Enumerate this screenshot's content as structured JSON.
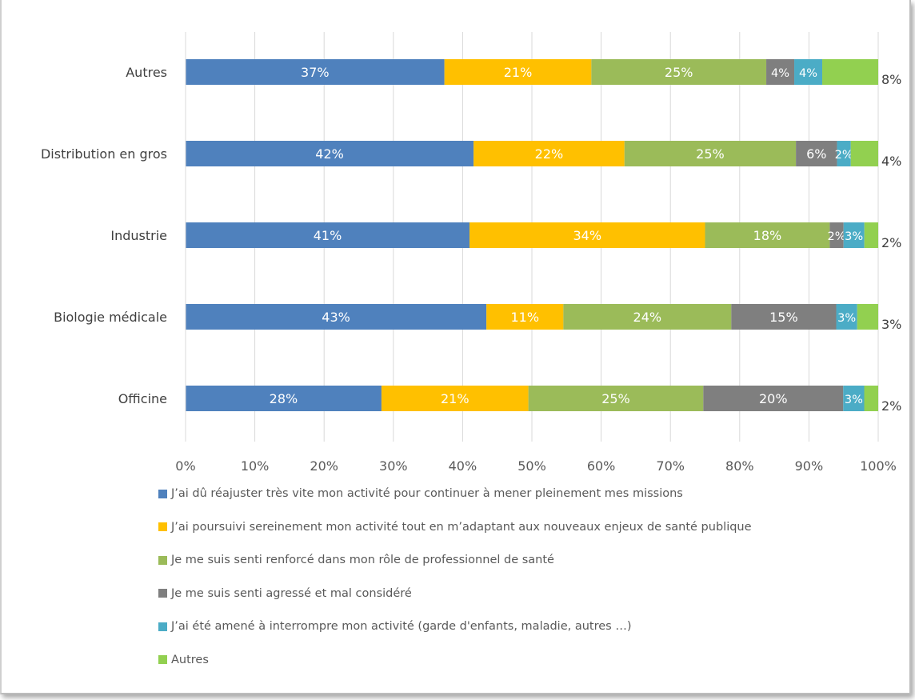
{
  "chart_data": {
    "type": "bar",
    "orientation": "horizontal",
    "stacked": true,
    "percent_stacked": true,
    "categories": [
      "Autres",
      "Distribution en gros",
      "Industrie",
      "Biologie médicale",
      "Officine"
    ],
    "series": [
      {
        "name": "J’ai dû réajuster très vite mon activité pour continuer à mener pleinement mes missions",
        "color": "#4f81bd",
        "values": [
          37,
          42,
          41,
          43,
          28
        ],
        "labels": [
          "37%",
          "42%",
          "41%",
          "43%",
          "28%"
        ]
      },
      {
        "name": "J’ai poursuivi sereinement mon activité tout en m’adaptant aux nouveaux enjeux de santé publique",
        "color": "#ffc000",
        "values": [
          21,
          22,
          34,
          11,
          21
        ],
        "labels": [
          "21%",
          "22%",
          "34%",
          "11%",
          "21%"
        ]
      },
      {
        "name": "Je me suis senti renforcé dans mon rôle de professionnel de santé",
        "color": "#9bbb59",
        "values": [
          25,
          25,
          18,
          24,
          25
        ],
        "labels": [
          "25%",
          "25%",
          "18%",
          "24%",
          "25%"
        ]
      },
      {
        "name": "Je me suis senti agressé et mal considéré",
        "color": "#7f7f7f",
        "values": [
          4,
          6,
          2,
          15,
          20
        ],
        "labels": [
          "4%",
          "6%",
          "2%",
          "15%",
          "20%"
        ]
      },
      {
        "name": "J’ai été amené à interrompre mon activité (garde d'enfants, maladie, autres …)",
        "color": "#4bacc6",
        "values": [
          4,
          2,
          3,
          3,
          3
        ],
        "labels": [
          "4%",
          "2%",
          "3%",
          "3%",
          "3%"
        ]
      },
      {
        "name": "Autres",
        "color": "#92d050",
        "values": [
          8,
          4,
          2,
          3,
          2
        ],
        "labels": [
          "8%",
          "4%",
          "2%",
          "3%",
          "2%"
        ]
      }
    ],
    "xlim": [
      0,
      100
    ],
    "x_ticks": [
      "0%",
      "10%",
      "20%",
      "30%",
      "40%",
      "50%",
      "60%",
      "70%",
      "80%",
      "90%",
      "100%"
    ],
    "grid": "vertical",
    "legend_position": "bottom-left"
  }
}
